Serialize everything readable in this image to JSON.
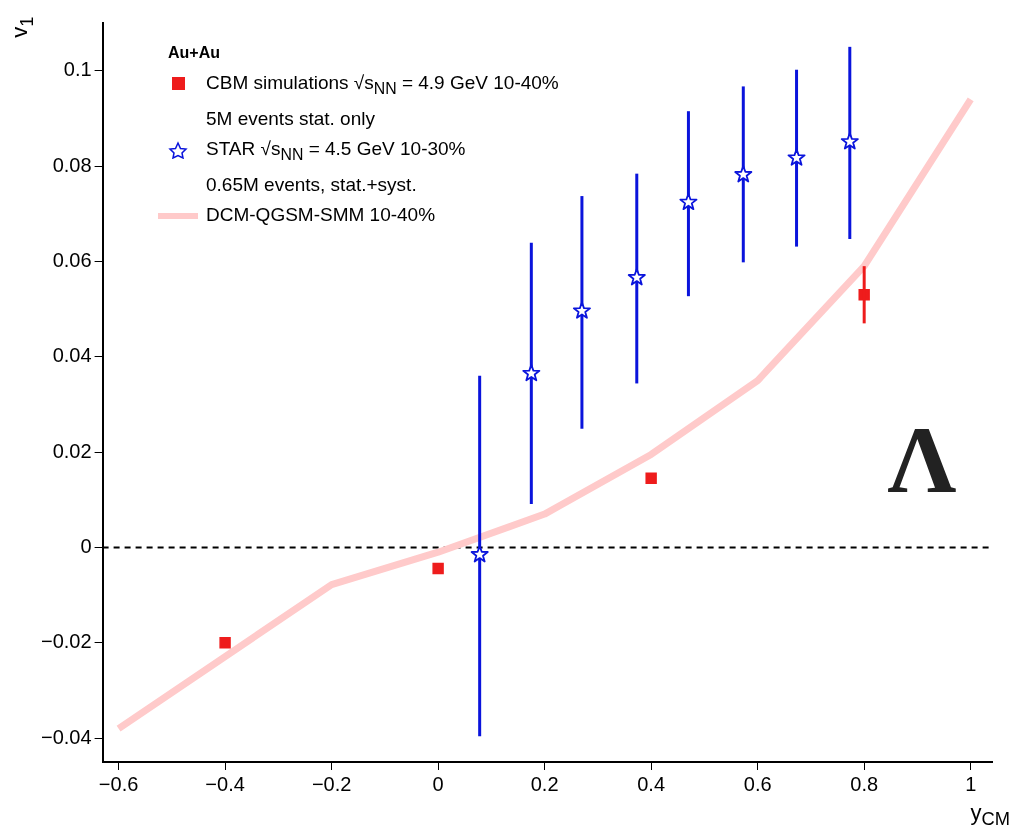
{
  "chart_data": {
    "type": "scatter",
    "xlabel": "y$_{CM}$",
    "ylabel": "v$_{1}$",
    "legend_title": "Au+Au",
    "legend": "top left",
    "xlim": [
      -0.63,
      1.04
    ],
    "ylim": [
      -0.045,
      0.11
    ],
    "xticks": [
      -0.6,
      -0.4,
      -0.2,
      0,
      0.2,
      0.4,
      0.6,
      0.8,
      1
    ],
    "yticks": [
      -0.04,
      -0.02,
      0,
      0.02,
      0.04,
      0.06,
      0.08,
      0.1
    ],
    "ref_lines": [
      {
        "axis": "y",
        "value": 0,
        "color": "#000000",
        "line_style": "dashed"
      }
    ],
    "annotations": [
      "Λ"
    ],
    "series": [
      {
        "name": "CBM simulations √s$_{NN}$ = 4.9 GeV 10-40%\n5M events stat. only",
        "type": "scatter",
        "marker": "square",
        "color": "#ee1c1c",
        "x": [
          -0.4,
          0,
          0.4,
          0.8
        ],
        "values": [
          -0.02,
          -0.0044,
          0.0145,
          0.053
        ],
        "errors": [
          null,
          null,
          null,
          [
            0.047,
            0.059
          ]
        ]
      },
      {
        "name": "STAR √s$_{NN}$ = 4.5 GeV 10-30%\n0.65M events, stat.+syst.",
        "type": "scatter",
        "marker": "star",
        "color": "#0a14dc",
        "x": [
          0.078,
          0.175,
          0.27,
          0.373,
          0.47,
          0.573,
          0.673,
          0.773
        ],
        "values": [
          -0.0015,
          0.0365,
          0.0496,
          0.0566,
          0.0724,
          0.0782,
          0.0817,
          0.0851
        ],
        "errors": [
          [
            -0.0396,
            0.036
          ],
          [
            0.0091,
            0.0639
          ],
          [
            0.0249,
            0.0737
          ],
          [
            0.0344,
            0.0784
          ],
          [
            0.0527,
            0.0915
          ],
          [
            0.0598,
            0.0967
          ],
          [
            0.0631,
            0.1002
          ],
          [
            0.0647,
            0.105
          ]
        ]
      },
      {
        "name": "DCM-QGSM-SMM 10-40%",
        "type": "line",
        "marker": "none",
        "color": "#ffcaca",
        "x": [
          -0.6,
          -0.2,
          0,
          0.2,
          0.4,
          0.6,
          0.8,
          1.0
        ],
        "values": [
          -0.038,
          -0.0078,
          -0.001,
          0.007,
          0.0195,
          0.035,
          0.059,
          0.094
        ]
      }
    ]
  }
}
